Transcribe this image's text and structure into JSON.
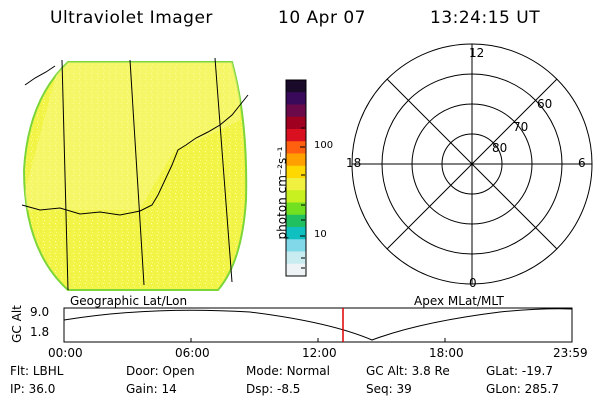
{
  "header": {
    "title": "Ultraviolet Imager",
    "date": "10 Apr 07",
    "time": "13:24:15 UT"
  },
  "left_panel": {
    "caption": "Geographic Lat/Lon",
    "disk_color": "#f0f542",
    "rim_color": "#7cd63a"
  },
  "colorbar": {
    "unit_label": "photon cm⁻²s⁻¹",
    "tick_labels": [
      "100",
      "10"
    ],
    "colors_top_to_bottom": [
      "#1a0a2a",
      "#3a0a5a",
      "#6a0a4a",
      "#a00020",
      "#d81020",
      "#ff6010",
      "#ffa000",
      "#ffd800",
      "#f0f040",
      "#c8f020",
      "#70e020",
      "#20c060",
      "#10c0c0",
      "#80d8e8",
      "#c8ecf0",
      "#eef4f6"
    ]
  },
  "right_panel": {
    "caption": "Apex MLat/MLT",
    "clock_labels": {
      "top": "12",
      "left": "18",
      "right": "6",
      "bottom": "0"
    },
    "ring_labels": [
      "60",
      "70",
      "80"
    ]
  },
  "timeline": {
    "ylabel": "GC Alt",
    "y_ticks": [
      "9.0",
      "1.8"
    ],
    "x_ticks": [
      "00:00",
      "06:00",
      "12:00",
      "18:00",
      "23:59"
    ],
    "current_marker_color": "#e00000"
  },
  "status": {
    "row1": [
      {
        "label": "Flt:",
        "value": "LBHL"
      },
      {
        "label": "Door:",
        "value": "Open"
      },
      {
        "label": "Mode:",
        "value": "Normal"
      },
      {
        "label": "GC Alt:",
        "value": "3.8 Re"
      },
      {
        "label": "GLat:",
        "value": "-19.7"
      }
    ],
    "row2": [
      {
        "label": "IP:",
        "value": "36.0"
      },
      {
        "label": "Gain:",
        "value": "14"
      },
      {
        "label": "Dsp:",
        "value": "-8.5"
      },
      {
        "label": "Seq:",
        "value": "39"
      },
      {
        "label": "GLon:",
        "value": "285.7"
      }
    ]
  }
}
